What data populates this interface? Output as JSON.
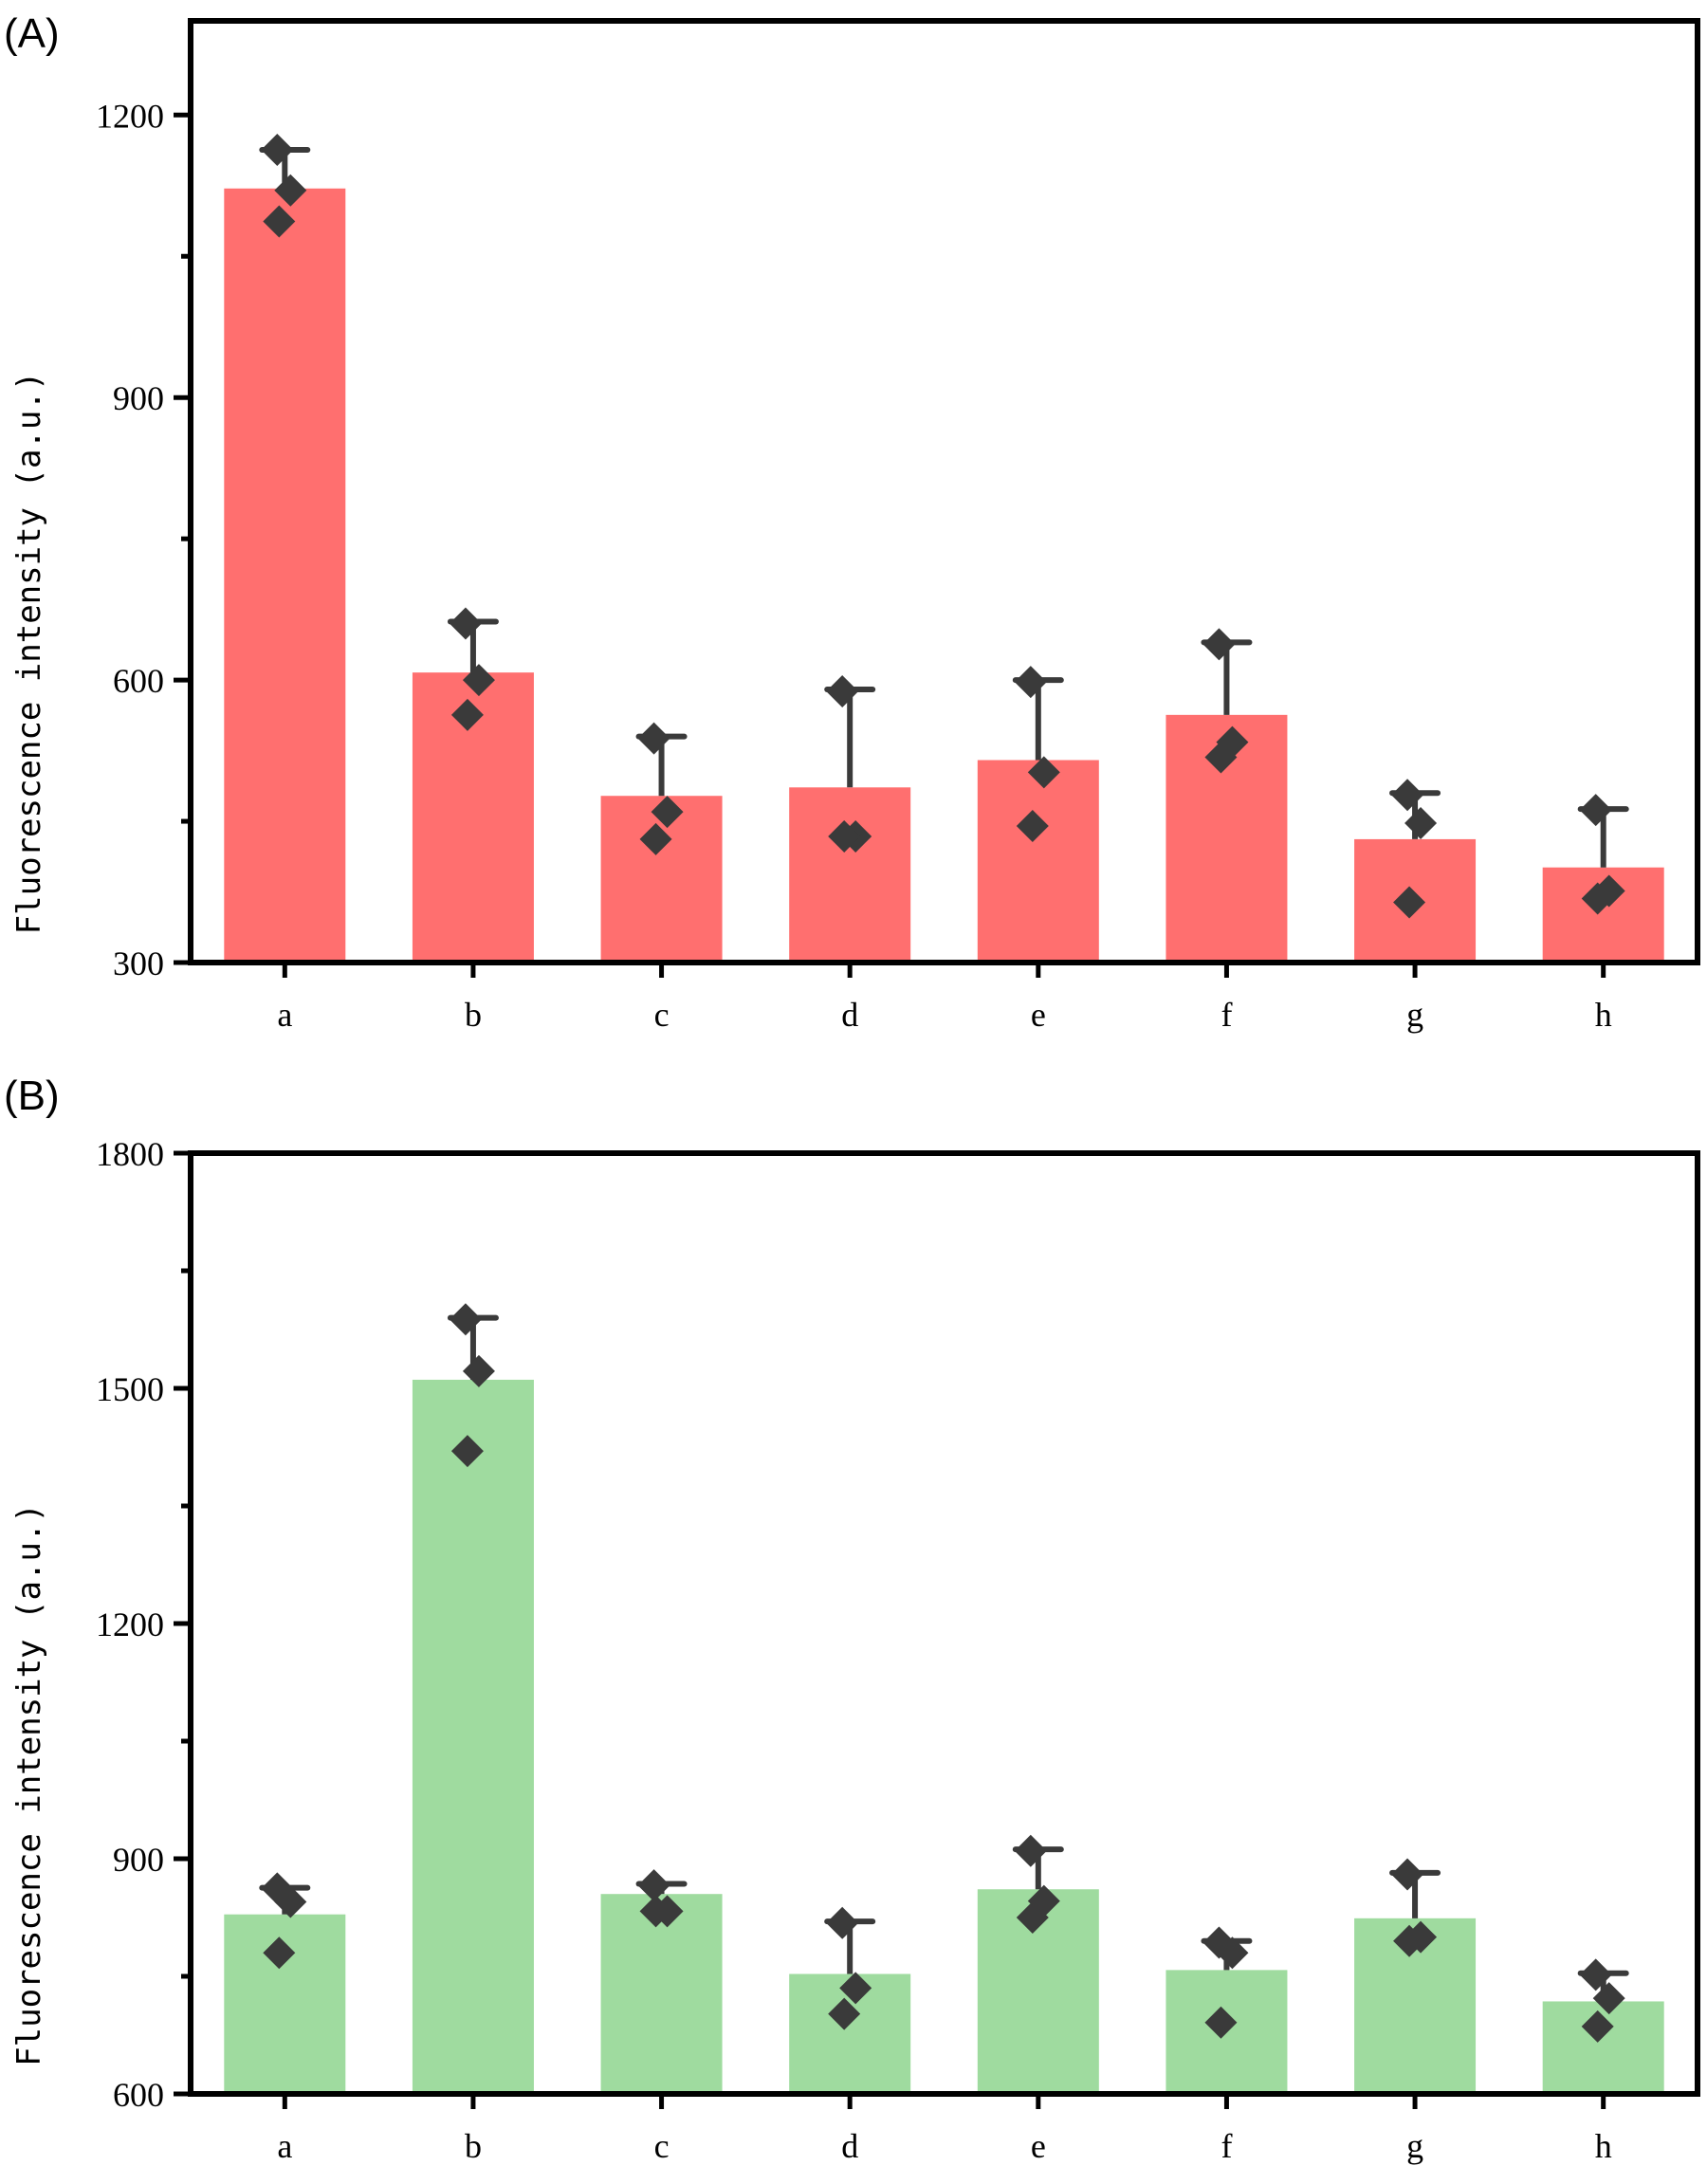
{
  "chart_data": [
    {
      "type": "bar",
      "panel_label": "(A)",
      "ylabel": "Fluorescence intensity (a.u.)",
      "xlabel": "",
      "categories": [
        "a",
        "b",
        "c",
        "d",
        "e",
        "f",
        "g",
        "h"
      ],
      "values": [
        1122,
        608,
        477,
        486,
        515,
        563,
        431,
        401
      ],
      "error_upper": [
        1163,
        662,
        540,
        590,
        600,
        640,
        480,
        463
      ],
      "points": [
        [
          1163,
          1120,
          1087
        ],
        [
          660,
          600,
          563
        ],
        [
          538,
          460,
          431
        ],
        [
          588,
          434,
          434
        ],
        [
          598,
          502,
          445
        ],
        [
          638,
          534,
          518
        ],
        [
          478,
          448,
          364
        ],
        [
          462,
          376,
          368
        ]
      ],
      "ylim": [
        300,
        1300
      ],
      "yticks": [
        300,
        600,
        900,
        1200
      ],
      "bar_color": "#ff6f6f",
      "marker_color": "#3a3a3a",
      "grid": false
    },
    {
      "type": "bar",
      "panel_label": "(B)",
      "ylabel": "Fluorescence intensity (a.u.)",
      "xlabel": "",
      "categories": [
        "a",
        "b",
        "c",
        "d",
        "e",
        "f",
        "g",
        "h"
      ],
      "values": [
        829,
        1511,
        855,
        753,
        861,
        758,
        824,
        718
      ],
      "error_upper": [
        863,
        1590,
        868,
        820,
        912,
        795,
        882,
        754
      ],
      "points": [
        [
          862,
          845,
          780
        ],
        [
          1588,
          1522,
          1420
        ],
        [
          866,
          833,
          833
        ],
        [
          818,
          735,
          702
        ],
        [
          910,
          846,
          825
        ],
        [
          793,
          780,
          691
        ],
        [
          880,
          800,
          795
        ],
        [
          752,
          722,
          686
        ]
      ],
      "ylim": [
        600,
        1800
      ],
      "yticks": [
        600,
        900,
        1200,
        1500,
        1800
      ],
      "bar_color": "#9fdb9f",
      "marker_color": "#3a3a3a",
      "grid": false
    }
  ]
}
